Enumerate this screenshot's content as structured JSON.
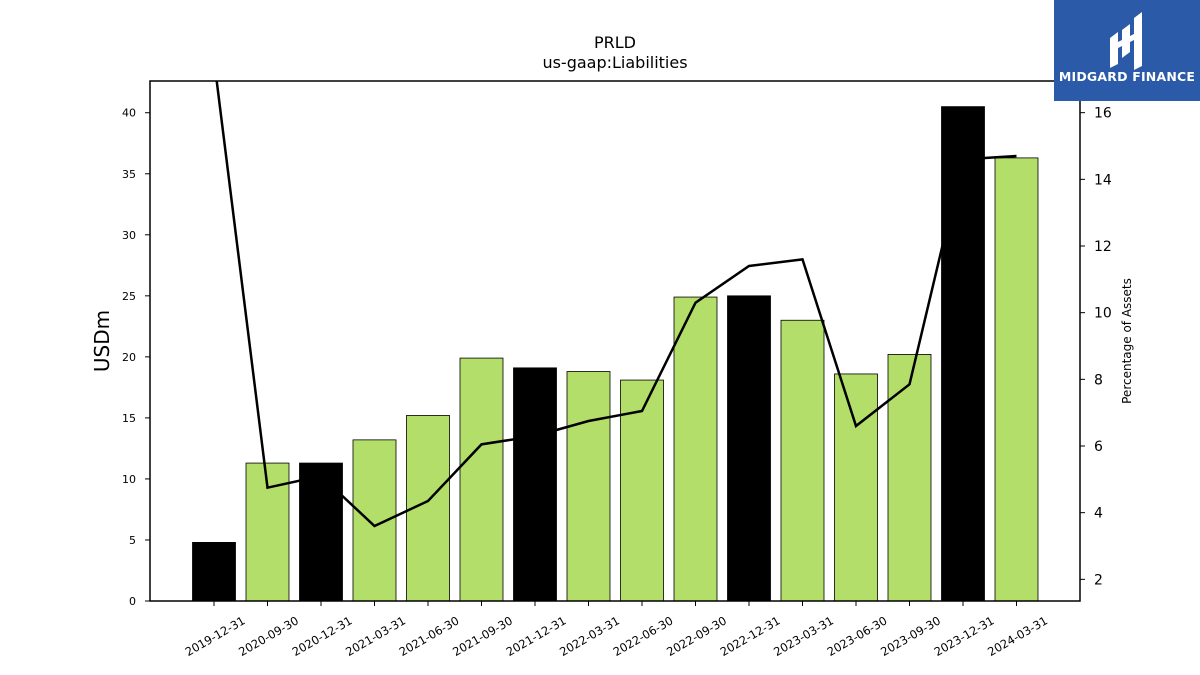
{
  "chart_data": {
    "type": "bar",
    "title": "PRLD",
    "subtitle": "us-gaap:Liabilities",
    "ylabel": "USDm",
    "y2label": "Percentage of Assets",
    "ylim": [
      0,
      42.6
    ],
    "y2lim": [
      1.35,
      16.95
    ],
    "yticks": [
      0,
      5,
      10,
      15,
      20,
      25,
      30,
      35,
      40
    ],
    "y2ticks": [
      2,
      4,
      6,
      8,
      10,
      12,
      14,
      16
    ],
    "categories": [
      "2019-12-31",
      "2020-09-30",
      "2020-12-31",
      "2021-03-31",
      "2021-06-30",
      "2021-09-30",
      "2021-12-31",
      "2022-03-31",
      "2022-06-30",
      "2022-09-30",
      "2022-12-31",
      "2023-03-31",
      "2023-06-30",
      "2023-09-30",
      "2023-12-31",
      "2024-03-31"
    ],
    "series": [
      {
        "kind": "bar",
        "values": [
          4.8,
          11.3,
          11.3,
          13.2,
          15.2,
          19.9,
          19.1,
          18.8,
          18.1,
          24.9,
          25.0,
          23.0,
          18.6,
          20.2,
          40.5,
          36.3
        ],
        "colors": [
          "#000000",
          "#b3de69",
          "#000000",
          "#b3de69",
          "#b3de69",
          "#b3de69",
          "#000000",
          "#b3de69",
          "#b3de69",
          "#b3de69",
          "#000000",
          "#b3de69",
          "#b3de69",
          "#b3de69",
          "#000000",
          "#b3de69"
        ]
      },
      {
        "kind": "line",
        "axis": "right",
        "color": "#000000",
        "values": [
          17.6,
          4.75,
          5.1,
          3.6,
          4.35,
          6.05,
          6.3,
          6.75,
          7.05,
          10.3,
          11.4,
          11.6,
          6.6,
          7.85,
          14.6,
          14.7
        ]
      }
    ]
  },
  "logo": {
    "text": "MIDGARD FINANCE",
    "bg": "#2b5aa8"
  }
}
